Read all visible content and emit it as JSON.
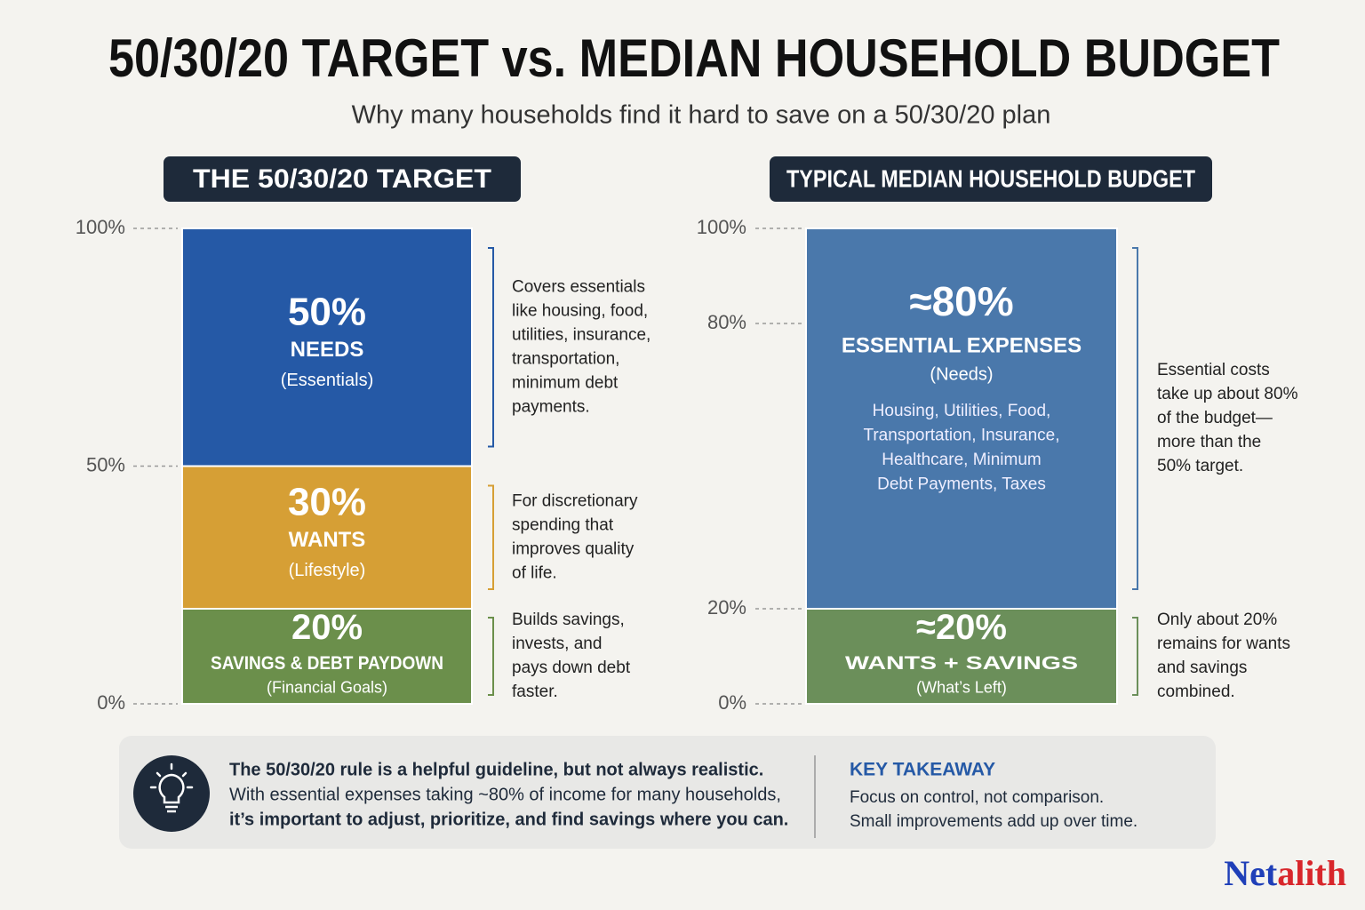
{
  "title": "50/30/20 TARGET vs. MEDIAN HOUSEHOLD BUDGET",
  "subtitle": "Why many households find it hard to save on a 50/30/20 plan",
  "chart_data": [
    {
      "type": "stacked-bar",
      "title": "THE 50/30/20 TARGET",
      "ylim": [
        0,
        100
      ],
      "yticks": [
        {
          "value": 0,
          "label": "0%"
        },
        {
          "value": 50,
          "label": "50%"
        },
        {
          "value": 100,
          "label": "100%"
        }
      ],
      "series": [
        {
          "name": "SAVINGS & DEBT PAYDOWN",
          "subtitle": "(Financial Goals)",
          "color": "#6b8f4b",
          "values": [
            20
          ],
          "value_labels": [
            "20%"
          ],
          "description": [
            "Builds savings,",
            "invests, and",
            "pays down debt",
            "faster."
          ]
        },
        {
          "name": "WANTS",
          "subtitle": "(Lifestyle)",
          "color": "#d69f35",
          "values": [
            30
          ],
          "value_labels": [
            "30%"
          ],
          "description": [
            "For discretionary",
            "spending that",
            "improves quality",
            "of life."
          ]
        },
        {
          "name": "NEEDS",
          "subtitle": "(Essentials)",
          "color": "#2559a6",
          "values": [
            50
          ],
          "value_labels": [
            "50%"
          ],
          "description": [
            "Covers essentials",
            "like housing, food,",
            "utilities, insurance,",
            "transportation,",
            "minimum debt",
            "payments."
          ]
        }
      ]
    },
    {
      "type": "stacked-bar",
      "title": "TYPICAL MEDIAN HOUSEHOLD BUDGET",
      "ylim": [
        0,
        100
      ],
      "yticks": [
        {
          "value": 0,
          "label": "0%"
        },
        {
          "value": 20,
          "label": "20%"
        },
        {
          "value": 80,
          "label": "80%"
        },
        {
          "value": 100,
          "label": "100%"
        }
      ],
      "series": [
        {
          "name": "WANTS + SAVINGS",
          "subtitle": "(What’s Left)",
          "color": "#6b8f5a",
          "values": [
            20
          ],
          "value_labels": [
            "≈20%"
          ],
          "description": [
            "Only about 20%",
            "remains for wants",
            "and savings",
            "combined."
          ]
        },
        {
          "name": "ESSENTIAL EXPENSES",
          "subtitle": "(Needs)",
          "color": "#4a78ab",
          "values": [
            80
          ],
          "value_labels": [
            "≈80%"
          ],
          "details": [
            "Housing, Utilities, Food,",
            "Transportation, Insurance,",
            "Healthcare, Minimum",
            "Debt Payments, Taxes"
          ],
          "description": [
            "Essential costs",
            "take up about 80%",
            "of the budget—",
            "more than the",
            "50% target."
          ]
        }
      ]
    }
  ],
  "footer": {
    "lines": [
      "The 50/30/20 rule is a helpful guideline, but not always realistic.",
      "With essential expenses taking ~80% of income for many households,",
      "it’s important to adjust, prioritize, and find savings where you can."
    ],
    "takeaway_title": "KEY TAKEAWAY",
    "takeaway_lines": [
      "Focus on control, not comparison.",
      "Small improvements add up over time."
    ]
  },
  "brand": [
    "Net",
    "alith"
  ]
}
